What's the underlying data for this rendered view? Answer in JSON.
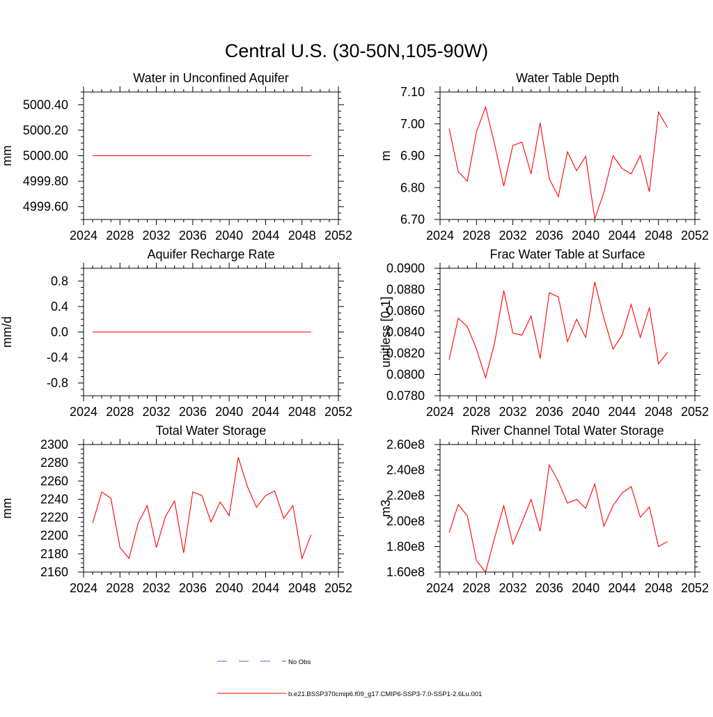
{
  "figure": {
    "title": "Central U.S. (30-50N,105-90W)"
  },
  "legend": {
    "obs_label": "No Obs",
    "model_label": "b.e21.BSSP370cmip6.f09_g17.CMIP6-SSP3-7.0-SSP1-2.6Lu.001",
    "obs_color": "#4f5bd5",
    "model_color": "#ff0000"
  },
  "chart_data": [
    {
      "type": "line",
      "title": "Water in Unconfined Aquifer",
      "ylabel": "mm",
      "xlim": [
        2024,
        2052
      ],
      "ylim": [
        4999.5,
        5000.5
      ],
      "xticks": [
        2024,
        2028,
        2032,
        2036,
        2040,
        2044,
        2048,
        2052
      ],
      "xtick_labels": [
        "2024",
        "2028",
        "2032",
        "2036",
        "2040",
        "2044",
        "2048",
        "2052"
      ],
      "yticks": [
        4999.6,
        4999.8,
        5000.0,
        5000.2,
        5000.4
      ],
      "ytick_labels": [
        "4999.60",
        "4999.80",
        "5000.00",
        "5000.20",
        "5000.40"
      ],
      "yminor": 0.05,
      "x": [
        2025,
        2026,
        2027,
        2028,
        2029,
        2030,
        2031,
        2032,
        2033,
        2034,
        2035,
        2036,
        2037,
        2038,
        2039,
        2040,
        2041,
        2042,
        2043,
        2044,
        2045,
        2046,
        2047,
        2048,
        2049
      ],
      "series": [
        {
          "values": [
            5000,
            5000,
            5000,
            5000,
            5000,
            5000,
            5000,
            5000,
            5000,
            5000,
            5000,
            5000,
            5000,
            5000,
            5000,
            5000,
            5000,
            5000,
            5000,
            5000,
            5000,
            5000,
            5000,
            5000,
            5000
          ],
          "color": "#ff0000"
        }
      ]
    },
    {
      "type": "line",
      "title": "Water Table Depth",
      "ylabel": "m",
      "xlim": [
        2024,
        2052
      ],
      "ylim": [
        6.7,
        7.1
      ],
      "xticks": [
        2024,
        2028,
        2032,
        2036,
        2040,
        2044,
        2048,
        2052
      ],
      "xtick_labels": [
        "2024",
        "2028",
        "2032",
        "2036",
        "2040",
        "2044",
        "2048",
        "2052"
      ],
      "yticks": [
        6.7,
        6.8,
        6.9,
        7.0,
        7.1
      ],
      "ytick_labels": [
        "6.70",
        "6.80",
        "6.90",
        "7.00",
        "7.10"
      ],
      "yminor": 0.02,
      "x": [
        2025,
        2026,
        2027,
        2028,
        2029,
        2030,
        2031,
        2032,
        2033,
        2034,
        2035,
        2036,
        2037,
        2038,
        2039,
        2040,
        2041,
        2042,
        2043,
        2044,
        2045,
        2046,
        2047,
        2048,
        2049
      ],
      "series": [
        {
          "values": [
            6.985,
            6.85,
            6.82,
            6.975,
            7.053,
            6.935,
            6.805,
            6.932,
            6.943,
            6.843,
            7.003,
            6.828,
            6.772,
            6.912,
            6.853,
            6.898,
            6.702,
            6.785,
            6.9,
            6.86,
            6.843,
            6.9,
            6.787,
            7.037,
            6.988
          ],
          "color": "#ff0000"
        }
      ]
    },
    {
      "type": "line",
      "title": "Aquifer Recharge Rate",
      "ylabel": "mm/d",
      "xlim": [
        2024,
        2052
      ],
      "ylim": [
        -1.0,
        1.0
      ],
      "xticks": [
        2024,
        2028,
        2032,
        2036,
        2040,
        2044,
        2048,
        2052
      ],
      "xtick_labels": [
        "2024",
        "2028",
        "2032",
        "2036",
        "2040",
        "2044",
        "2048",
        "2052"
      ],
      "yticks": [
        -0.8,
        -0.4,
        0.0,
        0.4,
        0.8
      ],
      "ytick_labels": [
        "-0.8",
        "-0.4",
        "0.0",
        "0.4",
        "0.8"
      ],
      "yminor": 0.1,
      "x": [
        2025,
        2026,
        2027,
        2028,
        2029,
        2030,
        2031,
        2032,
        2033,
        2034,
        2035,
        2036,
        2037,
        2038,
        2039,
        2040,
        2041,
        2042,
        2043,
        2044,
        2045,
        2046,
        2047,
        2048,
        2049
      ],
      "series": [
        {
          "values": [
            0,
            0,
            0,
            0,
            0,
            0,
            0,
            0,
            0,
            0,
            0,
            0,
            0,
            0,
            0,
            0,
            0,
            0,
            0,
            0,
            0,
            0,
            0,
            0,
            0
          ],
          "color": "#ff0000"
        }
      ]
    },
    {
      "type": "line",
      "title": "Frac Water Table at Surface",
      "ylabel": "unitless [0-1]",
      "xlim": [
        2024,
        2052
      ],
      "ylim": [
        0.078,
        0.09
      ],
      "xticks": [
        2024,
        2028,
        2032,
        2036,
        2040,
        2044,
        2048,
        2052
      ],
      "xtick_labels": [
        "2024",
        "2028",
        "2032",
        "2036",
        "2040",
        "2044",
        "2048",
        "2052"
      ],
      "yticks": [
        0.078,
        0.08,
        0.082,
        0.084,
        0.086,
        0.088,
        0.09
      ],
      "ytick_labels": [
        "0.0780",
        "0.0800",
        "0.0820",
        "0.0840",
        "0.0860",
        "0.0880",
        "0.0900"
      ],
      "yminor": 0.0005,
      "x": [
        2025,
        2026,
        2027,
        2028,
        2029,
        2030,
        2031,
        2032,
        2033,
        2034,
        2035,
        2036,
        2037,
        2038,
        2039,
        2040,
        2041,
        2042,
        2043,
        2044,
        2045,
        2046,
        2047,
        2048,
        2049
      ],
      "series": [
        {
          "values": [
            0.0814,
            0.0853,
            0.0845,
            0.0824,
            0.0797,
            0.083,
            0.0879,
            0.0839,
            0.0837,
            0.0855,
            0.0815,
            0.0877,
            0.0873,
            0.0831,
            0.0852,
            0.0835,
            0.0887,
            0.0853,
            0.0824,
            0.0837,
            0.0866,
            0.0835,
            0.0863,
            0.081,
            0.0821
          ],
          "color": "#ff0000"
        }
      ]
    },
    {
      "type": "line",
      "title": "Total Water Storage",
      "ylabel": "mm",
      "xlim": [
        2024,
        2052
      ],
      "ylim": [
        2160,
        2300
      ],
      "xticks": [
        2024,
        2028,
        2032,
        2036,
        2040,
        2044,
        2048,
        2052
      ],
      "xtick_labels": [
        "2024",
        "2028",
        "2032",
        "2036",
        "2040",
        "2044",
        "2048",
        "2052"
      ],
      "yticks": [
        2160,
        2180,
        2200,
        2220,
        2240,
        2260,
        2280,
        2300
      ],
      "ytick_labels": [
        "2160",
        "2180",
        "2200",
        "2220",
        "2240",
        "2260",
        "2280",
        "2300"
      ],
      "yminor": 5,
      "x": [
        2025,
        2026,
        2027,
        2028,
        2029,
        2030,
        2031,
        2032,
        2033,
        2034,
        2035,
        2036,
        2037,
        2038,
        2039,
        2040,
        2041,
        2042,
        2043,
        2044,
        2045,
        2046,
        2047,
        2048,
        2049
      ],
      "series": [
        {
          "values": [
            2214,
            2248,
            2241,
            2187,
            2175,
            2214,
            2233,
            2187,
            2221,
            2238,
            2181,
            2248,
            2244,
            2215,
            2237,
            2222,
            2286,
            2254,
            2231,
            2244,
            2249,
            2219,
            2233,
            2175,
            2201
          ],
          "color": "#ff0000"
        }
      ]
    },
    {
      "type": "line",
      "title": "River Channel Total Water Storage",
      "ylabel": "m3",
      "xlim": [
        2024,
        2052
      ],
      "ylim": [
        160000000,
        260000000
      ],
      "xticks": [
        2024,
        2028,
        2032,
        2036,
        2040,
        2044,
        2048,
        2052
      ],
      "xtick_labels": [
        "2024",
        "2028",
        "2032",
        "2036",
        "2040",
        "2044",
        "2048",
        "2052"
      ],
      "yticks": [
        160000000,
        180000000,
        200000000,
        220000000,
        240000000,
        260000000
      ],
      "ytick_labels": [
        "1.60e8",
        "1.80e8",
        "2.00e8",
        "2.20e8",
        "2.40e8",
        "2.60e8"
      ],
      "yminor": 4000000,
      "x": [
        2025,
        2026,
        2027,
        2028,
        2029,
        2030,
        2031,
        2032,
        2033,
        2034,
        2035,
        2036,
        2037,
        2038,
        2039,
        2040,
        2041,
        2042,
        2043,
        2044,
        2045,
        2046,
        2047,
        2048,
        2049
      ],
      "series": [
        {
          "values": [
            191000000,
            213000000,
            204000000,
            169000000,
            160000000,
            187000000,
            212000000,
            182000000,
            199000000,
            217000000,
            192000000,
            244000000,
            231000000,
            214000000,
            217000000,
            210000000,
            229000000,
            196000000,
            212000000,
            222000000,
            227000000,
            203000000,
            211000000,
            180000000,
            184000000
          ],
          "color": "#ff0000"
        }
      ]
    }
  ]
}
